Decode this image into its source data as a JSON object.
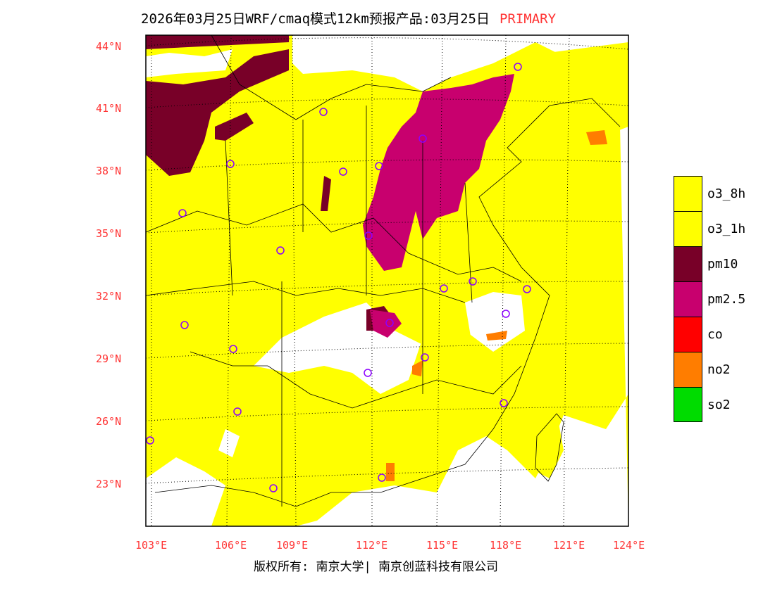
{
  "title": {
    "text": "2026年03月25日WRF/cmaq模式12km预报产品:03月25日",
    "tag": "PRIMARY"
  },
  "lat_labels": [
    "44°N",
    "41°N",
    "38°N",
    "35°N",
    "32°N",
    "29°N",
    "26°N",
    "23°N"
  ],
  "lon_labels": [
    "103°E",
    "106°E",
    "109°E",
    "112°E",
    "115°E",
    "118°E",
    "121°E",
    "124°E"
  ],
  "legend": [
    {
      "label": "o3_8h",
      "color": "#ffff00"
    },
    {
      "label": "o3_1h",
      "color": "#ffff00"
    },
    {
      "label": "pm10",
      "color": "#780028"
    },
    {
      "label": "pm2.5",
      "color": "#c8006e"
    },
    {
      "label": "co",
      "color": "#ff0000"
    },
    {
      "label": "no2",
      "color": "#ff7d00"
    },
    {
      "label": "so2",
      "color": "#00dc00"
    }
  ],
  "footer": "版权所有: 南京大学| 南京创蓝科技有限公司"
}
